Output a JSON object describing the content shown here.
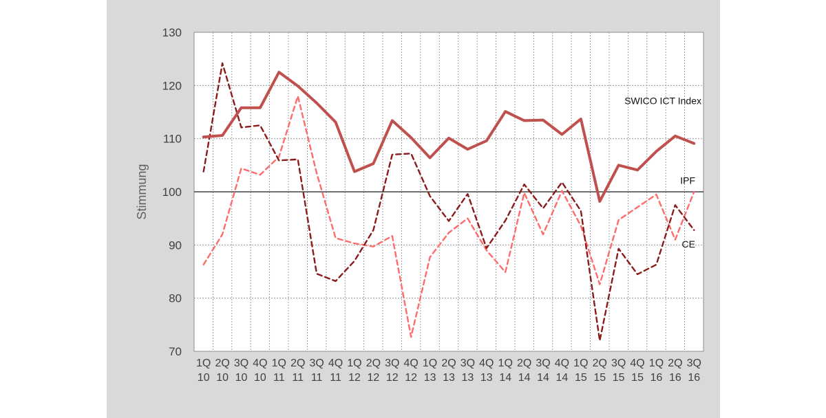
{
  "chart_data": {
    "type": "line",
    "ylabel": "Stimmung",
    "ylim": [
      70,
      130
    ],
    "yticks": [
      70,
      80,
      90,
      100,
      110,
      120,
      130
    ],
    "grid": true,
    "reference_line": 100,
    "categories": [
      [
        "1Q",
        "10"
      ],
      [
        "2Q",
        "10"
      ],
      [
        "3Q",
        "10"
      ],
      [
        "4Q",
        "10"
      ],
      [
        "1Q",
        "11"
      ],
      [
        "2Q",
        "11"
      ],
      [
        "3Q",
        "11"
      ],
      [
        "4Q",
        "11"
      ],
      [
        "1Q",
        "12"
      ],
      [
        "2Q",
        "12"
      ],
      [
        "3Q",
        "12"
      ],
      [
        "4Q",
        "12"
      ],
      [
        "1Q",
        "13"
      ],
      [
        "2Q",
        "13"
      ],
      [
        "3Q",
        "13"
      ],
      [
        "4Q",
        "13"
      ],
      [
        "1Q",
        "14"
      ],
      [
        "2Q",
        "14"
      ],
      [
        "3Q",
        "14"
      ],
      [
        "4Q",
        "14"
      ],
      [
        "1Q",
        "15"
      ],
      [
        "2Q",
        "15"
      ],
      [
        "3Q",
        "15"
      ],
      [
        "4Q",
        "15"
      ],
      [
        "1Q",
        "16"
      ],
      [
        "2Q",
        "16"
      ],
      [
        "3Q",
        "16"
      ]
    ],
    "series": [
      {
        "name": "SWICO ICT Index",
        "color": "#c0504d",
        "style": "solid",
        "values": [
          110.3,
          110.6,
          115.8,
          115.8,
          122.5,
          119.9,
          116.7,
          113.1,
          103.8,
          105.3,
          113.4,
          110.2,
          106.4,
          110.1,
          108.0,
          109.6,
          115.1,
          113.4,
          113.5,
          110.8,
          113.7,
          98.2,
          105.0,
          104.1,
          107.6,
          110.5,
          109.1
        ]
      },
      {
        "name": "IPF",
        "color": "#8b1a1a",
        "style": "dashed",
        "values": [
          103.8,
          124.2,
          112.1,
          112.5,
          105.9,
          106.1,
          84.6,
          83.2,
          87.0,
          92.8,
          107.0,
          107.2,
          99.2,
          94.5,
          99.6,
          89.4,
          94.6,
          101.4,
          96.9,
          101.8,
          96.4,
          72.0,
          89.3,
          84.5,
          86.3,
          97.5,
          92.8
        ]
      },
      {
        "name": "CE",
        "color": "#ff6b6b",
        "style": "dashed",
        "values": [
          86.3,
          92.0,
          104.4,
          103.2,
          106.6,
          118.0,
          103.5,
          91.3,
          90.3,
          89.7,
          91.7,
          72.7,
          87.7,
          92.3,
          95.0,
          89.0,
          84.9,
          99.8,
          92.0,
          100.2,
          93.6,
          82.6,
          94.7,
          97.1,
          99.5,
          91.0,
          100.0
        ]
      }
    ]
  }
}
